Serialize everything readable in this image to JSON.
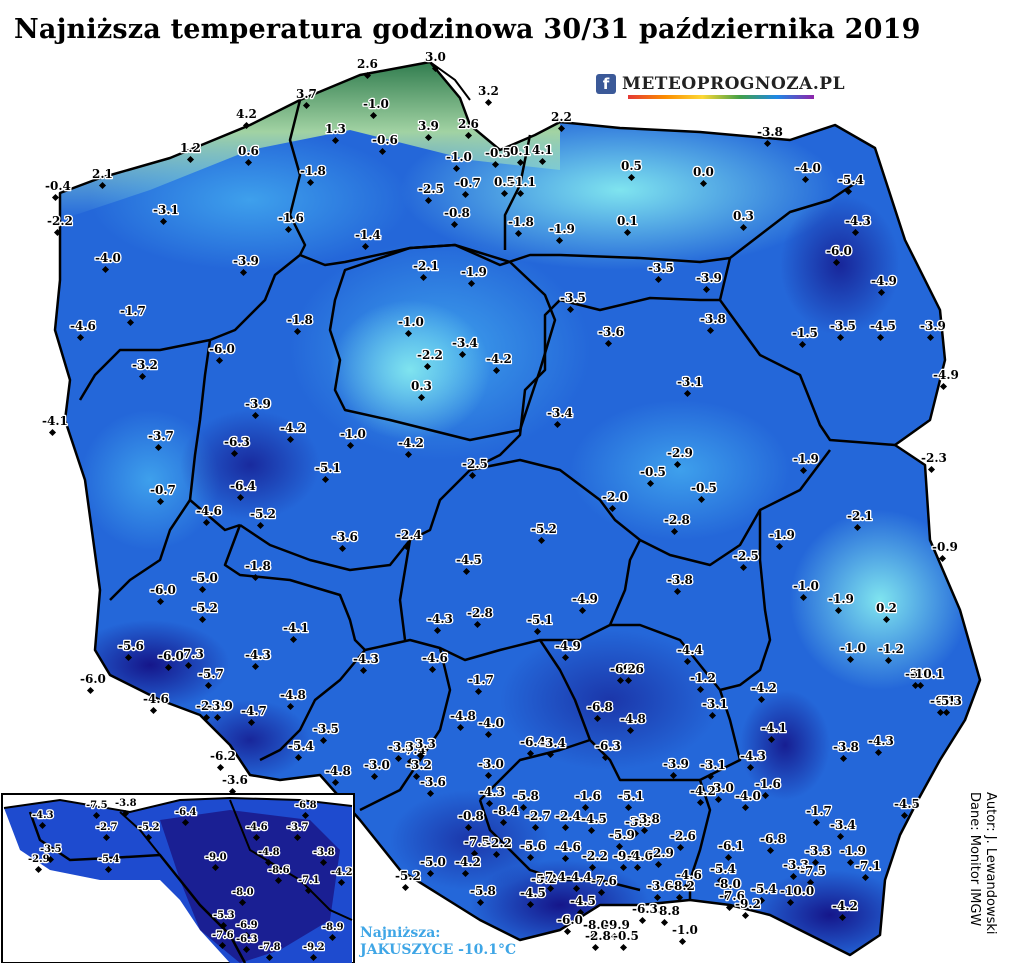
{
  "title": "Najniższa temperatura godzinowa 30/31 października 2019",
  "brand": {
    "icon": "facebook-icon",
    "text": "METEOPROGNOZA.PL",
    "fb_glyph": "f"
  },
  "author": {
    "line1": "Autor: J. Lewandowski",
    "line2": "Dane: Monitor IMGW"
  },
  "minimum": {
    "label": "Najniższa:",
    "value": "JAKUSZYCE -10.1°C"
  },
  "colors": {
    "cold_dark": "#1c1f8a",
    "cold": "#1f4fd6",
    "mid": "#2f8fe8",
    "warm": "#55c8f0",
    "warmest": "#6fb46a",
    "border": "#000000"
  },
  "stations": [
    {
      "v": "2.6"
    },
    {
      "v": "3.0"
    },
    {
      "v": "3.2"
    },
    {
      "v": "3.7"
    },
    {
      "v": "4.2"
    },
    {
      "v": "-1.0"
    },
    {
      "v": "1.3"
    },
    {
      "v": "-0.6"
    },
    {
      "v": "3.9"
    },
    {
      "v": "2.6"
    },
    {
      "v": "2.2"
    },
    {
      "v": "-3.8"
    },
    {
      "v": "1.2"
    },
    {
      "v": "0.6"
    },
    {
      "v": "-1.0"
    },
    {
      "v": "-0.5"
    },
    {
      "v": "0.1"
    },
    {
      "v": "4.1"
    },
    {
      "v": "-4.0"
    },
    {
      "v": "-5.4"
    },
    {
      "v": "2.1"
    },
    {
      "v": "-0.4"
    },
    {
      "v": "-1.8"
    },
    {
      "v": "-2.5"
    },
    {
      "v": "-0.7"
    },
    {
      "v": "0.5"
    },
    {
      "v": "-1.1"
    },
    {
      "v": "0.5"
    },
    {
      "v": "0.0"
    },
    {
      "v": "-2.2"
    },
    {
      "v": "-3.1"
    },
    {
      "v": "-1.6"
    },
    {
      "v": "-0.8"
    },
    {
      "v": "-1.8"
    },
    {
      "v": "-1.9"
    },
    {
      "v": "0.1"
    },
    {
      "v": "0.3"
    },
    {
      "v": "-4.3"
    },
    {
      "v": "-1.4"
    },
    {
      "v": "-4.0"
    },
    {
      "v": "-3.9"
    },
    {
      "v": "-2.1"
    },
    {
      "v": "-1.9"
    },
    {
      "v": "-3.5"
    },
    {
      "v": "-3.9"
    },
    {
      "v": "-6.0"
    },
    {
      "v": "-4.9"
    },
    {
      "v": "-1.7"
    },
    {
      "v": "-3.5"
    },
    {
      "v": "-4.6"
    },
    {
      "v": "-1.8"
    },
    {
      "v": "-1.0"
    },
    {
      "v": "-3.6"
    },
    {
      "v": "-3.8"
    },
    {
      "v": "-1.5"
    },
    {
      "v": "-3.5"
    },
    {
      "v": "-4.5"
    },
    {
      "v": "-3.9"
    },
    {
      "v": "-3.2"
    },
    {
      "v": "-6.0"
    },
    {
      "v": "-2.2"
    },
    {
      "v": "-3.4"
    },
    {
      "v": "-4.2"
    },
    {
      "v": "-4.9"
    },
    {
      "v": "0.3"
    },
    {
      "v": "-3.1"
    },
    {
      "v": "-3.9"
    },
    {
      "v": "-4.1"
    },
    {
      "v": "-3.7"
    },
    {
      "v": "-6.3"
    },
    {
      "v": "-4.2"
    },
    {
      "v": "-1.0"
    },
    {
      "v": "-3.4"
    },
    {
      "v": "-4.2"
    },
    {
      "v": "-5.1"
    },
    {
      "v": "-2.9"
    },
    {
      "v": "-1.9"
    },
    {
      "v": "-2.3"
    },
    {
      "v": "-0.5"
    },
    {
      "v": "-0.5"
    },
    {
      "v": "-2.5"
    },
    {
      "v": "-6.4"
    },
    {
      "v": "-0.7"
    },
    {
      "v": "-2.0"
    },
    {
      "v": "-2.1"
    },
    {
      "v": "-4.6"
    },
    {
      "v": "-5.2"
    },
    {
      "v": "-2.8"
    },
    {
      "v": "-3.6"
    },
    {
      "v": "-2.4"
    },
    {
      "v": "-5.2"
    },
    {
      "v": "-1.9"
    },
    {
      "v": "-0.9"
    },
    {
      "v": "-2.5"
    },
    {
      "v": "-1.8"
    },
    {
      "v": "-4.5"
    },
    {
      "v": "-6.0"
    },
    {
      "v": "-5.0"
    },
    {
      "v": "-3.8"
    },
    {
      "v": "-1.0"
    },
    {
      "v": "-1.9"
    },
    {
      "v": "-4.9"
    },
    {
      "v": "-5.2"
    },
    {
      "v": "0.2"
    },
    {
      "v": "-4.1"
    },
    {
      "v": "-4.3"
    },
    {
      "v": "-2.8"
    },
    {
      "v": "-5.1"
    },
    {
      "v": "-1.0"
    },
    {
      "v": "-1.2"
    },
    {
      "v": "-5.6"
    },
    {
      "v": "-7.3"
    },
    {
      "v": "-4.3"
    },
    {
      "v": "-4.3"
    },
    {
      "v": "-4.6"
    },
    {
      "v": "-4.9"
    },
    {
      "v": "-4.4"
    },
    {
      "v": "-6.0"
    },
    {
      "v": "-6.0"
    },
    {
      "v": "-3.9"
    },
    {
      "v": "-4.6"
    },
    {
      "v": "-5.7"
    },
    {
      "v": "-0.6"
    },
    {
      "v": "-1.2"
    },
    {
      "v": "-10.1"
    },
    {
      "v": "-6.1"
    },
    {
      "v": "-4.8"
    },
    {
      "v": "-6.2"
    },
    {
      "v": "-2.2"
    },
    {
      "v": "-1.7"
    },
    {
      "v": "-4.2"
    },
    {
      "v": "-5.3"
    },
    {
      "v": "-3.9"
    },
    {
      "v": "-4.7"
    },
    {
      "v": "-4.8"
    },
    {
      "v": "-4.8"
    },
    {
      "v": "-4.0"
    },
    {
      "v": "-6.8"
    },
    {
      "v": "-3.1"
    },
    {
      "v": "-4.1"
    },
    {
      "v": "-3.5"
    },
    {
      "v": "-7.4"
    },
    {
      "v": "-6.4"
    },
    {
      "v": "-3.3"
    },
    {
      "v": "-6.2"
    },
    {
      "v": "-5.4"
    },
    {
      "v": "-3.3"
    },
    {
      "v": "-3.4"
    },
    {
      "v": "-6.3"
    },
    {
      "v": "-3.8"
    },
    {
      "v": "-4.3"
    },
    {
      "v": "-4.3"
    },
    {
      "v": "-3.6"
    },
    {
      "v": "-4.8"
    },
    {
      "v": "-3.0"
    },
    {
      "v": "-3.2"
    },
    {
      "v": "-3.0"
    },
    {
      "v": "-3.9"
    },
    {
      "v": "-3.1"
    },
    {
      "v": "-3.6"
    },
    {
      "v": "-3.0"
    },
    {
      "v": "-1.6"
    },
    {
      "v": "-4.5"
    },
    {
      "v": "-4.3"
    },
    {
      "v": "-5.8"
    },
    {
      "v": "-1.6"
    },
    {
      "v": "-5.1"
    },
    {
      "v": "-4.2"
    },
    {
      "v": "-4.0"
    },
    {
      "v": "-1.7"
    },
    {
      "v": "-3.4"
    },
    {
      "v": "-0.8"
    },
    {
      "v": "-4.5"
    },
    {
      "v": "-8.4"
    },
    {
      "v": "-2.7"
    },
    {
      "v": "-2.4"
    },
    {
      "v": "-3.6"
    },
    {
      "v": "-3.8"
    },
    {
      "v": "-2.6"
    },
    {
      "v": "-6.1"
    },
    {
      "v": "-7.5"
    },
    {
      "v": "-5.9"
    },
    {
      "v": "-6.8"
    },
    {
      "v": "-3.3"
    },
    {
      "v": "-1.9"
    },
    {
      "v": "-5.0"
    },
    {
      "v": "-5.6"
    },
    {
      "v": "-2.2"
    },
    {
      "v": "-4.6"
    },
    {
      "v": "-2.2"
    },
    {
      "v": "-9.0"
    },
    {
      "v": "-4.6"
    },
    {
      "v": "-3.3"
    },
    {
      "v": "-7.5"
    },
    {
      "v": "-2.9"
    },
    {
      "v": "-5.4"
    },
    {
      "v": "-4.2"
    },
    {
      "v": "-5.2"
    },
    {
      "v": "-4.4"
    },
    {
      "v": "-4.6"
    },
    {
      "v": "-3.6"
    },
    {
      "v": "-8.0"
    },
    {
      "v": "-7.1"
    },
    {
      "v": "-5.2"
    },
    {
      "v": "-4.5"
    },
    {
      "v": "-5.8"
    },
    {
      "v": "-7.4"
    },
    {
      "v": "-7.6"
    },
    {
      "v": "-4.5"
    },
    {
      "v": "-8.8"
    },
    {
      "v": "-6.3"
    },
    {
      "v": "-8.2"
    },
    {
      "v": "-7.6"
    },
    {
      "v": "-5.4"
    },
    {
      "v": "-10.0"
    },
    {
      "v": "-9.2"
    },
    {
      "v": "-4.2"
    },
    {
      "v": "-8.0"
    },
    {
      "v": "-6.0"
    },
    {
      "v": "-9.9"
    },
    {
      "v": "-2.8"
    },
    {
      "v": "-0.5"
    },
    {
      "v": "-1.0"
    }
  ],
  "inset": [
    {
      "v": "-4.3"
    },
    {
      "v": "-7.5"
    },
    {
      "v": "-3.8"
    },
    {
      "v": "-6.4"
    },
    {
      "v": "-6.8"
    },
    {
      "v": "-2.7"
    },
    {
      "v": "-5.2"
    },
    {
      "v": "-4.6"
    },
    {
      "v": "-3.7"
    },
    {
      "v": "-2.9"
    },
    {
      "v": "-3.5"
    },
    {
      "v": "-5.4"
    },
    {
      "v": "-9.0"
    },
    {
      "v": "-4.8"
    },
    {
      "v": "-3.8"
    },
    {
      "v": "-8.6"
    },
    {
      "v": "-7.1"
    },
    {
      "v": "-4.2"
    },
    {
      "v": "-8.0"
    },
    {
      "v": "-5.3"
    },
    {
      "v": "-6.9"
    },
    {
      "v": "-8.9"
    },
    {
      "v": "-7.6"
    },
    {
      "v": "-6.3"
    },
    {
      "v": "-7.8"
    },
    {
      "v": "-9.2"
    }
  ]
}
